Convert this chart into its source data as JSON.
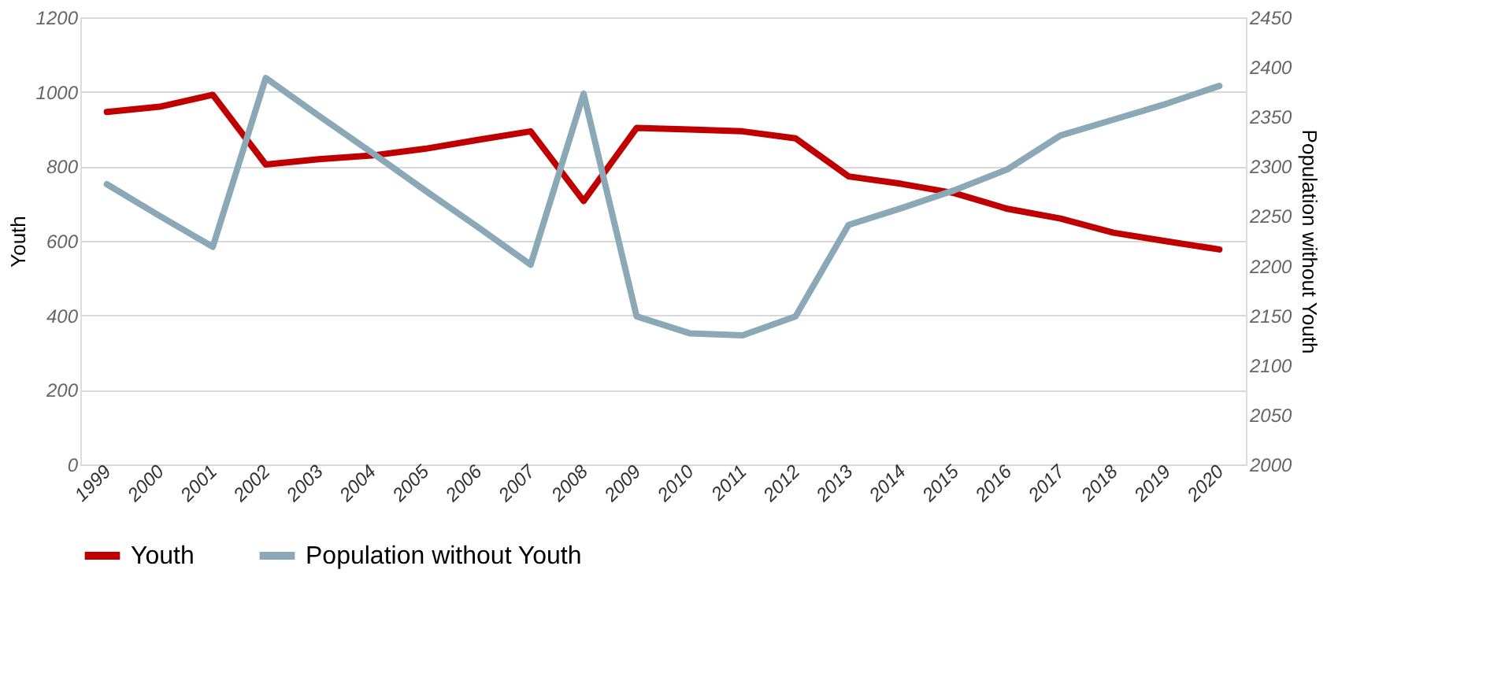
{
  "chart_data": {
    "type": "line",
    "categories": [
      "1999",
      "2000",
      "2001",
      "2002",
      "2003",
      "2004",
      "2005",
      "2006",
      "2007",
      "2008",
      "2009",
      "2010",
      "2011",
      "2012",
      "2013",
      "2014",
      "2015",
      "2016",
      "2017",
      "2018",
      "2019",
      "2020"
    ],
    "series": [
      {
        "name": "Youth",
        "color": "#c00000",
        "values": [
          946,
          960,
          992,
          805,
          819,
          829,
          847,
          871,
          894,
          707,
          903,
          899,
          894,
          875,
          773,
          753,
          728,
          686,
          660,
          622,
          599,
          577
        ]
      },
      {
        "name": "Population without Youth",
        "color": "#8ba8b7",
        "axis": "y2",
        "values": [
          2282,
          2250,
          2219,
          2389,
          2351,
          2314,
          2276,
          2239,
          2201,
          2373,
          2149,
          2132,
          2130,
          2149,
          2241,
          2258,
          2276,
          2297,
          2331,
          2347,
          2363,
          2381
        ]
      }
    ],
    "ylabel": "Youth",
    "y2label": "Population without Youth",
    "ylim": [
      0,
      1200
    ],
    "yticks": [
      0,
      200,
      400,
      600,
      800,
      1000,
      1200
    ],
    "y2lim": [
      2000,
      2450
    ],
    "y2ticks": [
      2000,
      2050,
      2100,
      2150,
      2200,
      2250,
      2300,
      2350,
      2400,
      2450
    ],
    "grid": "y",
    "legend": "bottom",
    "marker": "none",
    "line_style": "solid"
  }
}
